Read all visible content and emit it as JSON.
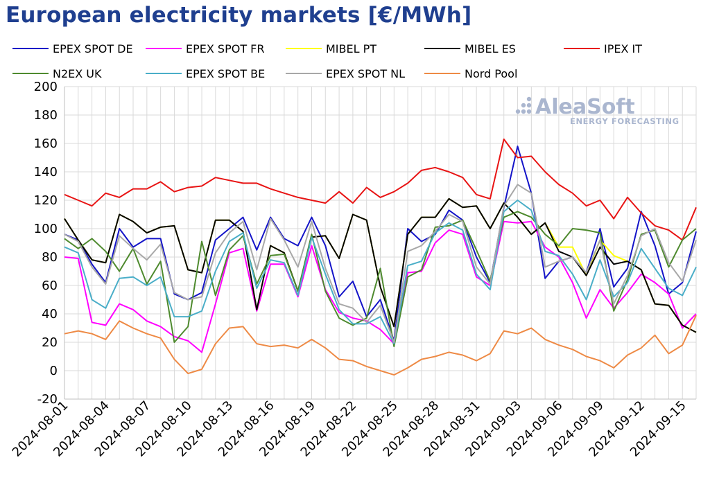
{
  "title": "European electricity markets [€/MWh]",
  "logo": {
    "main": "AleaSoft",
    "sub": "ENERGY FORECASTING"
  },
  "chart_data": {
    "type": "line",
    "ylim": [
      -20,
      200
    ],
    "yticks": [
      -20,
      0,
      20,
      40,
      60,
      80,
      100,
      120,
      140,
      160,
      180,
      200
    ],
    "grid": true,
    "legend_position": "top",
    "xtick_labels": [
      "2024-08-01",
      "2024-08-04",
      "2024-08-07",
      "2024-08-10",
      "2024-08-13",
      "2024-08-16",
      "2024-08-19",
      "2024-08-22",
      "2024-08-25",
      "2024-08-28",
      "2024-08-31",
      "2024-09-03",
      "2024-09-06",
      "2024-09-09",
      "2024-09-12",
      "2024-09-15"
    ],
    "x": [
      "2024-08-01",
      "2024-08-02",
      "2024-08-03",
      "2024-08-04",
      "2024-08-05",
      "2024-08-06",
      "2024-08-07",
      "2024-08-08",
      "2024-08-09",
      "2024-08-10",
      "2024-08-11",
      "2024-08-12",
      "2024-08-13",
      "2024-08-14",
      "2024-08-15",
      "2024-08-16",
      "2024-08-17",
      "2024-08-18",
      "2024-08-19",
      "2024-08-20",
      "2024-08-21",
      "2024-08-22",
      "2024-08-23",
      "2024-08-24",
      "2024-08-25",
      "2024-08-26",
      "2024-08-27",
      "2024-08-28",
      "2024-08-29",
      "2024-08-30",
      "2024-08-31",
      "2024-09-01",
      "2024-09-02",
      "2024-09-03",
      "2024-09-04",
      "2024-09-05",
      "2024-09-06",
      "2024-09-07",
      "2024-09-08",
      "2024-09-09",
      "2024-09-10",
      "2024-09-11",
      "2024-09-12",
      "2024-09-13",
      "2024-09-14",
      "2024-09-15",
      "2024-09-16"
    ],
    "series": [
      {
        "name": "EPEX SPOT DE",
        "color": "#1414c8",
        "values": [
          96,
          92,
          75,
          62,
          100,
          87,
          93,
          93,
          54,
          50,
          55,
          92,
          100,
          108,
          85,
          108,
          93,
          88,
          108,
          88,
          52,
          63,
          38,
          50,
          21,
          100,
          91,
          96,
          113,
          106,
          80,
          62,
          115,
          158,
          125,
          65,
          77,
          80,
          69,
          100,
          59,
          72,
          112,
          88,
          54,
          62,
          98
        ]
      },
      {
        "name": "EPEX SPOT FR",
        "color": "#ff00ff",
        "values": [
          80,
          79,
          34,
          32,
          47,
          43,
          35,
          31,
          24,
          21,
          13,
          47,
          83,
          86,
          42,
          75,
          75,
          52,
          88,
          57,
          41,
          37,
          35,
          29,
          19,
          69,
          70,
          90,
          99,
          96,
          66,
          60,
          105,
          104,
          105,
          87,
          80,
          62,
          37,
          57,
          44,
          55,
          68,
          62,
          54,
          30,
          40
        ]
      },
      {
        "name": "MIBEL PT",
        "color": "#ffff00",
        "values": [
          107,
          92,
          78,
          76,
          110,
          105,
          97,
          101,
          102,
          71,
          69,
          106,
          106,
          98,
          43,
          88,
          83,
          56,
          94,
          95,
          79,
          110,
          106,
          59,
          31,
          96,
          108,
          108,
          121,
          115,
          116,
          100,
          118,
          108,
          96,
          104,
          87,
          87,
          67,
          92,
          81,
          77,
          71,
          47,
          46,
          32,
          27
        ]
      },
      {
        "name": "MIBEL ES",
        "color": "#000000",
        "values": [
          107,
          92,
          78,
          76,
          110,
          105,
          97,
          101,
          102,
          71,
          69,
          106,
          106,
          98,
          43,
          88,
          83,
          56,
          94,
          95,
          79,
          110,
          106,
          59,
          31,
          96,
          108,
          108,
          121,
          115,
          116,
          100,
          118,
          108,
          96,
          104,
          84,
          80,
          67,
          87,
          75,
          77,
          71,
          47,
          46,
          32,
          27
        ]
      },
      {
        "name": "IPEX IT",
        "color": "#e81414",
        "values": [
          124,
          120,
          116,
          125,
          122,
          128,
          128,
          133,
          126,
          129,
          130,
          136,
          134,
          132,
          132,
          128,
          125,
          122,
          120,
          118,
          126,
          118,
          129,
          122,
          126,
          132,
          141,
          143,
          140,
          136,
          124,
          121,
          163,
          150,
          151,
          140,
          131,
          125,
          116,
          120,
          107,
          122,
          111,
          102,
          99,
          92,
          115
        ]
      },
      {
        "name": "N2EX UK",
        "color": "#4e8a2e",
        "values": [
          93,
          86,
          93,
          84,
          70,
          86,
          61,
          77,
          20,
          31,
          91,
          53,
          85,
          95,
          61,
          81,
          82,
          56,
          96,
          56,
          37,
          32,
          37,
          72,
          17,
          66,
          71,
          101,
          102,
          106,
          85,
          63,
          108,
          112,
          108,
          96,
          88,
          100,
          99,
          97,
          42,
          64,
          96,
          99,
          73,
          92,
          100
        ]
      },
      {
        "name": "EPEX SPOT BE",
        "color": "#4aaec8",
        "values": [
          87,
          83,
          50,
          44,
          65,
          66,
          60,
          66,
          38,
          38,
          42,
          70,
          91,
          97,
          58,
          78,
          76,
          53,
          94,
          68,
          43,
          33,
          33,
          38,
          19,
          74,
          77,
          97,
          104,
          99,
          68,
          57,
          112,
          120,
          113,
          84,
          81,
          68,
          50,
          78,
          52,
          62,
          86,
          72,
          58,
          53,
          73
        ]
      },
      {
        "name": "EPEX SPOT NL",
        "color": "#a8a8a8",
        "values": [
          96,
          91,
          73,
          61,
          95,
          86,
          78,
          89,
          55,
          50,
          52,
          83,
          97,
          105,
          71,
          107,
          92,
          73,
          105,
          72,
          47,
          44,
          34,
          46,
          20,
          84,
          88,
          98,
          110,
          105,
          73,
          61,
          116,
          131,
          125,
          73,
          77,
          80,
          69,
          92,
          47,
          67,
          95,
          100,
          76,
          63,
          92
        ]
      },
      {
        "name": "Nord Pool",
        "color": "#ee8a45",
        "values": [
          26,
          28,
          26,
          22,
          35,
          30,
          26,
          23,
          8,
          -2,
          1,
          19,
          30,
          31,
          19,
          17,
          18,
          16,
          22,
          16,
          8,
          7,
          3,
          0,
          -3,
          2,
          8,
          10,
          13,
          11,
          7,
          12,
          28,
          26,
          30,
          22,
          18,
          15,
          10,
          7,
          2,
          11,
          16,
          25,
          12,
          18,
          39
        ]
      }
    ]
  }
}
